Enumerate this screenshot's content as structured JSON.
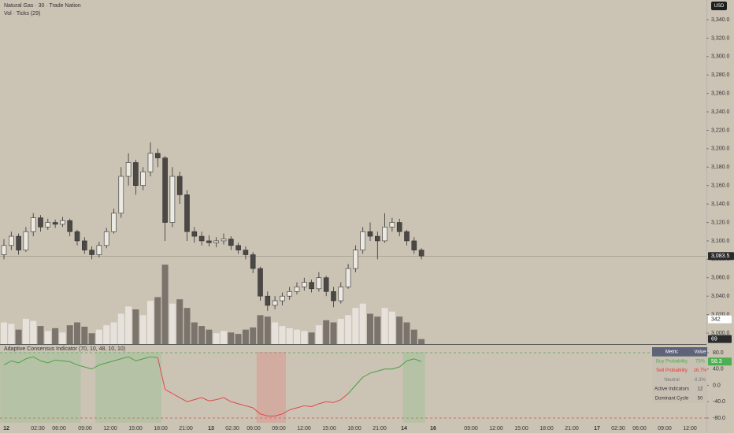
{
  "chart_data": {
    "type": "candlestick",
    "title": "Natural Gas · 30 · Trade Nation",
    "volume_title": "Vol · Ticks (29)",
    "indicator_title": "Adaptive Consensus Indicator (70, 10, 48, 10, 10)",
    "currency": "USD",
    "open": [
      3085,
      3095,
      3105,
      3090,
      3110,
      3125,
      3115,
      3120,
      3118,
      3122,
      3110,
      3100,
      3090,
      3085,
      3095,
      3110,
      3130,
      3170,
      3185,
      3160,
      3175,
      3195,
      3190,
      3120,
      3170,
      3150,
      3110,
      3105,
      3100,
      3098,
      3100,
      3102,
      3095,
      3090,
      3085,
      3070,
      3040,
      3030,
      3035,
      3040,
      3045,
      3050,
      3055,
      3048,
      3060,
      3045,
      3035,
      3050,
      3070,
      3090,
      3110,
      3105,
      3100,
      3115,
      3120,
      3110,
      3100,
      3090
    ],
    "high": [
      3102,
      3110,
      3108,
      3115,
      3130,
      3128,
      3124,
      3123,
      3126,
      3124,
      3112,
      3104,
      3094,
      3099,
      3114,
      3135,
      3180,
      3195,
      3188,
      3180,
      3207,
      3200,
      3192,
      3180,
      3175,
      3155,
      3115,
      3110,
      3106,
      3104,
      3108,
      3105,
      3098,
      3094,
      3088,
      3072,
      3045,
      3040,
      3044,
      3050,
      3055,
      3060,
      3058,
      3066,
      3062,
      3050,
      3055,
      3075,
      3095,
      3115,
      3120,
      3110,
      3130,
      3125,
      3124,
      3112,
      3104,
      3092
    ],
    "low": [
      3080,
      3090,
      3085,
      3088,
      3105,
      3110,
      3112,
      3114,
      3115,
      3105,
      3095,
      3086,
      3080,
      3082,
      3092,
      3108,
      3125,
      3160,
      3150,
      3155,
      3170,
      3180,
      3100,
      3115,
      3140,
      3100,
      3098,
      3095,
      3094,
      3093,
      3096,
      3090,
      3086,
      3080,
      3065,
      3035,
      3024,
      3026,
      3030,
      3036,
      3042,
      3046,
      3044,
      3045,
      3040,
      3028,
      3032,
      3048,
      3066,
      3086,
      3100,
      3080,
      3098,
      3110,
      3105,
      3095,
      3086,
      3080
    ],
    "close": [
      3095,
      3105,
      3090,
      3110,
      3125,
      3115,
      3120,
      3118,
      3122,
      3110,
      3100,
      3090,
      3085,
      3095,
      3110,
      3130,
      3170,
      3185,
      3160,
      3175,
      3195,
      3190,
      3120,
      3170,
      3150,
      3110,
      3105,
      3100,
      3098,
      3100,
      3102,
      3095,
      3090,
      3085,
      3070,
      3040,
      3030,
      3035,
      3040,
      3045,
      3050,
      3055,
      3048,
      3060,
      3045,
      3035,
      3050,
      3070,
      3090,
      3110,
      3105,
      3100,
      3115,
      3120,
      3110,
      3100,
      3090,
      3083.5
    ],
    "volume": [
      300,
      280,
      200,
      350,
      320,
      250,
      180,
      220,
      160,
      260,
      300,
      240,
      150,
      200,
      260,
      300,
      420,
      520,
      480,
      400,
      600,
      650,
      1100,
      560,
      620,
      500,
      300,
      250,
      200,
      150,
      180,
      160,
      140,
      200,
      230,
      400,
      380,
      300,
      250,
      220,
      200,
      180,
      160,
      260,
      330,
      300,
      350,
      400,
      500,
      560,
      420,
      380,
      500,
      450,
      380,
      300,
      200,
      69
    ],
    "indicator": [
      50,
      60,
      55,
      65,
      70,
      60,
      55,
      62,
      60,
      58,
      50,
      45,
      40,
      50,
      55,
      60,
      65,
      70,
      60,
      65,
      70,
      68,
      -10,
      -20,
      -30,
      -40,
      -35,
      -30,
      -38,
      -35,
      -30,
      -40,
      -45,
      -50,
      -55,
      -70,
      -75,
      -75,
      -70,
      -60,
      -55,
      -50,
      -52,
      -45,
      -40,
      -42,
      -35,
      -20,
      0,
      20,
      30,
      35,
      40,
      40,
      45,
      60,
      65,
      58.3
    ],
    "ylim": [
      3000,
      3340
    ],
    "yticks": [
      {
        "value": 3000,
        "label": "3,000.0"
      },
      {
        "value": 3020,
        "label": "3,020.0"
      },
      {
        "value": 3040,
        "label": "3,040.0"
      },
      {
        "value": 3060,
        "label": "3,060.0"
      },
      {
        "value": 3080,
        "label": "3,080.0"
      },
      {
        "value": 3100,
        "label": "3,100.0"
      },
      {
        "value": 3120,
        "label": "3,120.0"
      },
      {
        "value": 3140,
        "label": "3,140.0"
      },
      {
        "value": 3160,
        "label": "3,160.0"
      },
      {
        "value": 3180,
        "label": "3,180.0"
      },
      {
        "value": 3200,
        "label": "3,200.0"
      },
      {
        "value": 3220,
        "label": "3,220.0"
      },
      {
        "value": 3240,
        "label": "3,240.0"
      },
      {
        "value": 3260,
        "label": "3,260.0"
      },
      {
        "value": 3280,
        "label": "3,280.0"
      },
      {
        "value": 3300,
        "label": "3,300.0"
      },
      {
        "value": 3320,
        "label": "3,320.0"
      },
      {
        "value": 3340,
        "label": "3,340.0"
      }
    ],
    "last_price": {
      "value": 3083.5,
      "label": "3,083.5"
    },
    "volume_ylim": [
      0,
      1200
    ],
    "volume_ma_last": 342,
    "volume_last": 69,
    "indicator_ylim": [
      -80,
      80
    ],
    "indicator_yticks": [
      {
        "value": 80,
        "label": "80.0"
      },
      {
        "value": 40,
        "label": "40.0"
      },
      {
        "value": 0,
        "label": "0.0"
      },
      {
        "value": -40,
        "label": "-40.0"
      },
      {
        "value": -80,
        "label": "-80.0"
      }
    ],
    "indicator_last": 58.3,
    "x_labels": [
      "12",
      "02:30",
      "06:00",
      "09:00",
      "12:00",
      "15:00",
      "18:00",
      "21:00",
      "13",
      "02:30",
      "06:00",
      "09:00",
      "12:00",
      "15:00",
      "18:00",
      "21:00",
      "14",
      "16",
      "09:00",
      "12:00",
      "15:00",
      "18:00",
      "21:00",
      "17",
      "02:30",
      "06:00",
      "09:00",
      "12:00"
    ]
  },
  "table": {
    "header": [
      "Metric",
      "Value"
    ],
    "rows": [
      [
        "Buy Probability",
        "75%"
      ],
      [
        "Sell Probability",
        "16.7%"
      ],
      [
        "Neutral",
        "8.3%"
      ],
      [
        "Active Indicators",
        "12"
      ],
      [
        "Dominant Cycle",
        "50"
      ]
    ]
  }
}
